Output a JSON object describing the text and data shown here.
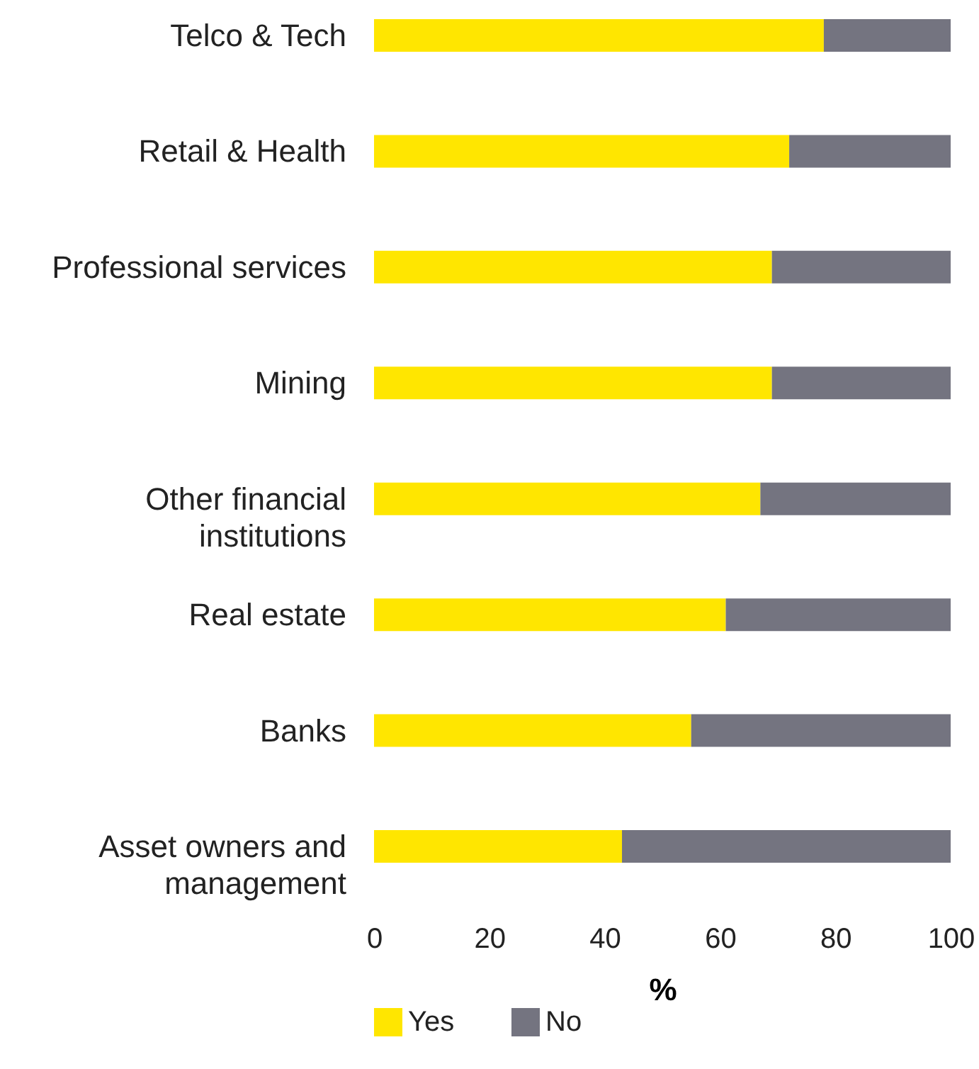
{
  "chart_data": {
    "type": "bar",
    "orientation": "horizontal",
    "stacked": true,
    "categories": [
      "Telco & Tech",
      "Retail & Health",
      "Professional services",
      "Mining",
      "Other financial institutions",
      "Real estate",
      "Banks",
      "Asset owners and management"
    ],
    "series": [
      {
        "name": "Yes",
        "color": "#ffe600",
        "values": [
          78,
          72,
          69,
          69,
          67,
          61,
          55,
          43
        ]
      },
      {
        "name": "No",
        "color": "#747480",
        "values": [
          22,
          28,
          31,
          31,
          33,
          39,
          45,
          57
        ]
      }
    ],
    "xlabel": "%",
    "xlim": [
      0,
      100
    ],
    "xticks": [
      0,
      20,
      40,
      60,
      80,
      100
    ],
    "grid": false,
    "legend": "bottom"
  }
}
